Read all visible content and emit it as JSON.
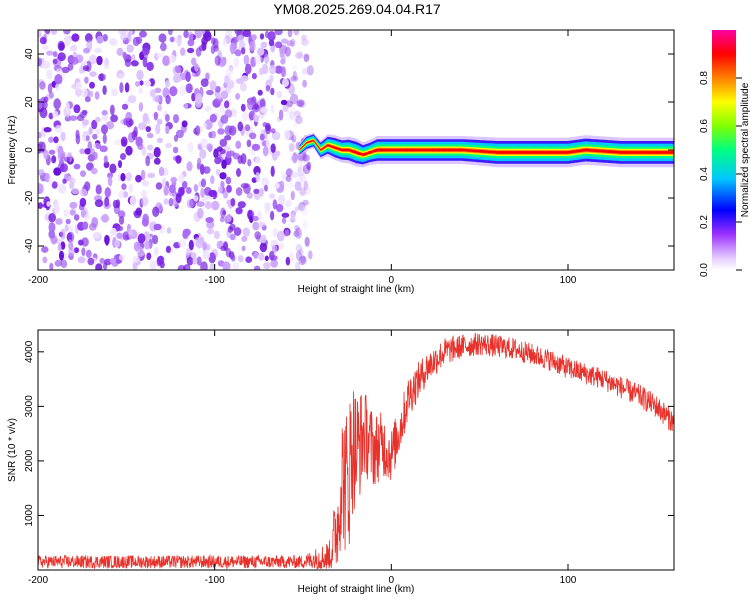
{
  "title": "YM08.2025.269.04.04.R17",
  "colors": {
    "snr_line": "#e8312a",
    "scatter": "#8a2be2",
    "axis": "#000000"
  },
  "chart_data": [
    {
      "type": "heatmap",
      "title": "YM08.2025.269.04.04.R17",
      "xlabel": "Height of straight line (km)",
      "ylabel": "Frequency (Hz)",
      "xlim": [
        -200,
        160
      ],
      "ylim": [
        -50,
        50
      ],
      "xticks": [
        -200,
        -100,
        0,
        100
      ],
      "xtick_labels": [
        "-200",
        "-100",
        "0",
        "100"
      ],
      "yticks": [
        -40,
        -20,
        0,
        20,
        40
      ],
      "ytick_labels": [
        "-40",
        "-20",
        "0",
        "20",
        "40"
      ],
      "noise_region_x": [
        -200,
        -48
      ],
      "signal_region_x": [
        -52,
        160
      ],
      "ridge": {
        "x": [
          -52,
          -48,
          -44,
          -40,
          -36,
          -32,
          -28,
          -24,
          -20,
          -16,
          -12,
          -8,
          0,
          20,
          40,
          60,
          80,
          100,
          110,
          130,
          160
        ],
        "freq": [
          0,
          3,
          4,
          0,
          2,
          1,
          0,
          0,
          -1,
          -2,
          -1,
          0,
          0,
          0,
          0,
          -1,
          -1,
          -1,
          0,
          -1,
          -1
        ],
        "peak_amplitude": [
          0.4,
          0.5,
          0.5,
          0.6,
          0.7,
          0.8,
          0.8,
          0.85,
          0.9,
          0.8,
          0.8,
          0.9,
          0.9,
          0.9,
          0.9,
          0.95,
          0.95,
          0.95,
          0.95,
          0.95,
          0.95
        ]
      },
      "colorbar": {
        "label": "Normalized spectral amplitude",
        "ticks": [
          0.0,
          0.2,
          0.4,
          0.6,
          0.8
        ],
        "tick_labels": [
          "0.0",
          "0.2",
          "0.4",
          "0.6",
          "0.8"
        ],
        "range": [
          0,
          1
        ]
      }
    },
    {
      "type": "line",
      "xlabel": "Height of straight line (km)",
      "ylabel": "SNR (10 * v/v)",
      "xlim": [
        -200,
        160
      ],
      "ylim": [
        0,
        4400
      ],
      "xticks": [
        -200,
        -100,
        0,
        100
      ],
      "xtick_labels": [
        "-200",
        "-100",
        "0",
        "100"
      ],
      "yticks": [
        1000,
        2000,
        3000,
        4000
      ],
      "ytick_labels": [
        "1000",
        "2000",
        "3000",
        "4000"
      ],
      "envelope": {
        "x": [
          -200,
          -150,
          -100,
          -50,
          -35,
          -30,
          -28,
          -25,
          -22,
          -20,
          -15,
          -10,
          -5,
          0,
          5,
          10,
          20,
          30,
          40,
          50,
          60,
          70,
          80,
          90,
          100,
          110,
          120,
          130,
          140,
          150,
          160
        ],
        "y": [
          150,
          150,
          150,
          150,
          250,
          900,
          1800,
          1500,
          2300,
          2200,
          2500,
          2200,
          2300,
          2100,
          2600,
          3200,
          3700,
          4000,
          4100,
          4150,
          4100,
          4050,
          3950,
          3850,
          3700,
          3600,
          3500,
          3350,
          3200,
          3000,
          2700
        ]
      },
      "noise_amplitude": {
        "x": [
          -200,
          -50,
          -35,
          -25,
          -15,
          0,
          20,
          40,
          80,
          120,
          160
        ],
        "amp": [
          120,
          120,
          300,
          1500,
          800,
          500,
          300,
          220,
          200,
          200,
          220
        ]
      }
    }
  ]
}
